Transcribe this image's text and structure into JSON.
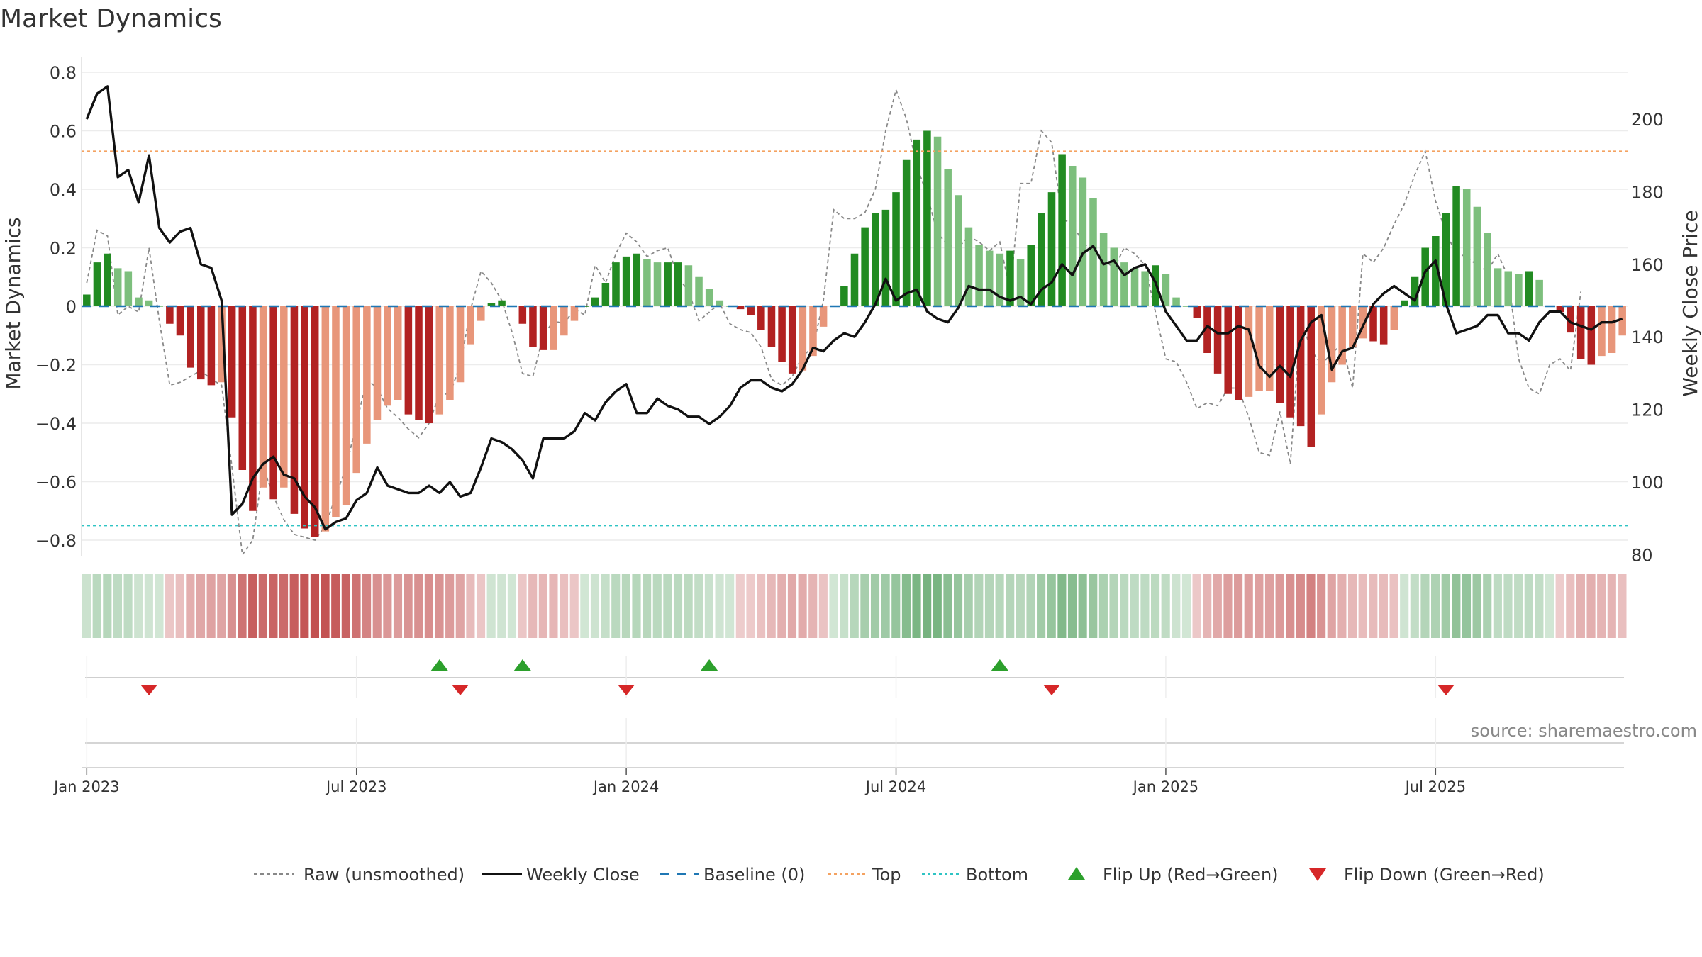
{
  "chart_data": {
    "type": "bar",
    "title": "Market Dynamics",
    "ylabel": "Market Dynamics",
    "y2label": "Weekly Close Price",
    "ylim": [
      -0.85,
      0.85
    ],
    "y2lim": [
      80,
      215
    ],
    "yticks": [
      "0.8",
      "0.6",
      "0.4",
      "0.2",
      "0",
      "−0.2",
      "−0.4",
      "−0.6",
      "−0.8"
    ],
    "y2ticks": [
      "200",
      "180",
      "160",
      "140",
      "120",
      "100",
      "80"
    ],
    "xticks": [
      "Jan 2023",
      "Jul 2023",
      "Jan 2024",
      "Jul 2024",
      "Jan 2025",
      "Jul 2025"
    ],
    "top_level": 0.53,
    "bottom_level": -0.75,
    "grid": true,
    "source": "source: sharemaestro.com",
    "legend": [
      {
        "label": "Raw (unsmoothed)",
        "style": "gray-dash"
      },
      {
        "label": "Weekly Close",
        "style": "black-line"
      },
      {
        "label": "Baseline (0)",
        "style": "blue-dash"
      },
      {
        "label": "Top",
        "style": "orange-dot"
      },
      {
        "label": "Bottom",
        "style": "cyan-dot"
      },
      {
        "label": "Flip Up (Red→Green)",
        "style": "green-up"
      },
      {
        "label": "Flip Down (Green→Red)",
        "style": "red-down"
      }
    ],
    "colors": {
      "green_strong": "#228b22",
      "green_light": "#7dbf7d",
      "red_strong": "#b22222",
      "red_light": "#e8967a",
      "baseline": "#1f77b4",
      "top": "#f4a261",
      "bottom": "#2ec4c4",
      "flip_up": "#2ca02c",
      "flip_down": "#d62728"
    },
    "series": [
      {
        "name": "Market Dynamics",
        "values": [
          0.04,
          0.15,
          0.18,
          0.13,
          0.12,
          0.03,
          0.02,
          0.0,
          -0.06,
          -0.1,
          -0.21,
          -0.25,
          -0.27,
          -0.26,
          -0.38,
          -0.56,
          -0.7,
          -0.62,
          -0.66,
          -0.62,
          -0.71,
          -0.76,
          -0.79,
          -0.77,
          -0.72,
          -0.68,
          -0.57,
          -0.47,
          -0.39,
          -0.34,
          -0.32,
          -0.37,
          -0.39,
          -0.4,
          -0.37,
          -0.32,
          -0.26,
          -0.13,
          -0.05,
          0.01,
          0.02,
          0.0,
          -0.06,
          -0.14,
          -0.15,
          -0.15,
          -0.1,
          -0.05,
          0.0,
          0.03,
          0.08,
          0.15,
          0.17,
          0.18,
          0.16,
          0.15,
          0.15,
          0.15,
          0.14,
          0.1,
          0.06,
          0.02,
          0.0,
          -0.01,
          -0.03,
          -0.08,
          -0.14,
          -0.19,
          -0.23,
          -0.22,
          -0.17,
          -0.07,
          0.0,
          0.07,
          0.18,
          0.27,
          0.32,
          0.33,
          0.39,
          0.5,
          0.57,
          0.6,
          0.58,
          0.47,
          0.38,
          0.27,
          0.21,
          0.19,
          0.18,
          0.19,
          0.16,
          0.21,
          0.32,
          0.39,
          0.52,
          0.48,
          0.44,
          0.37,
          0.25,
          0.2,
          0.15,
          0.13,
          0.12,
          0.14,
          0.11,
          0.03,
          0.0,
          -0.04,
          -0.16,
          -0.23,
          -0.3,
          -0.32,
          -0.31,
          -0.29,
          -0.29,
          -0.33,
          -0.38,
          -0.41,
          -0.48,
          -0.37,
          -0.26,
          -0.2,
          -0.14,
          -0.11,
          -0.12,
          -0.13,
          -0.08,
          0.02,
          0.1,
          0.2,
          0.24,
          0.32,
          0.41,
          0.4,
          0.34,
          0.25,
          0.13,
          0.12,
          0.11,
          0.12,
          0.09,
          0.0,
          -0.02,
          -0.09,
          -0.18,
          -0.2,
          -0.17,
          -0.16,
          -0.1
        ]
      },
      {
        "name": "Raw (unsmoothed)",
        "values": [
          0.08,
          0.26,
          0.24,
          -0.03,
          0.0,
          -0.02,
          0.2,
          -0.05,
          -0.27,
          -0.26,
          -0.24,
          -0.22,
          -0.25,
          -0.27,
          -0.55,
          -0.85,
          -0.8,
          -0.55,
          -0.65,
          -0.73,
          -0.78,
          -0.79,
          -0.8,
          -0.75,
          -0.65,
          -0.55,
          -0.4,
          -0.25,
          -0.28,
          -0.35,
          -0.38,
          -0.42,
          -0.45,
          -0.4,
          -0.3,
          -0.3,
          -0.2,
          -0.01,
          0.12,
          0.08,
          0.02,
          -0.09,
          -0.23,
          -0.24,
          -0.1,
          -0.05,
          -0.06,
          -0.01,
          -0.03,
          0.14,
          0.08,
          0.18,
          0.25,
          0.22,
          0.17,
          0.19,
          0.2,
          0.1,
          0.05,
          -0.05,
          -0.02,
          0.01,
          -0.06,
          -0.08,
          -0.09,
          -0.14,
          -0.25,
          -0.27,
          -0.24,
          -0.17,
          -0.14,
          0.02,
          0.33,
          0.3,
          0.3,
          0.32,
          0.4,
          0.6,
          0.74,
          0.64,
          0.48,
          0.38,
          0.25,
          0.21,
          0.2,
          0.24,
          0.22,
          0.19,
          0.22,
          0.05,
          0.42,
          0.42,
          0.6,
          0.56,
          0.3,
          0.28,
          0.22,
          0.18,
          0.16,
          0.13,
          0.2,
          0.18,
          0.14,
          -0.02,
          -0.18,
          -0.19,
          -0.26,
          -0.35,
          -0.33,
          -0.34,
          -0.28,
          -0.28,
          -0.38,
          -0.5,
          -0.51,
          -0.36,
          -0.54,
          -0.04,
          -0.15,
          -0.2,
          -0.16,
          -0.13,
          -0.28,
          0.18,
          0.15,
          0.2,
          0.28,
          0.35,
          0.45,
          0.53,
          0.36,
          0.25,
          0.18,
          0.17,
          0.14,
          0.12,
          0.18,
          0.1,
          -0.18,
          -0.28,
          -0.3,
          -0.2,
          -0.18,
          -0.22,
          0.05
        ]
      },
      {
        "name": "Weekly Close",
        "values": [
          200,
          207,
          209,
          184,
          186,
          177,
          190,
          170,
          166,
          169,
          170,
          160,
          159,
          150,
          91,
          94,
          101,
          105,
          107,
          102,
          101,
          96,
          93,
          87,
          89,
          90,
          95,
          97,
          104,
          99,
          98,
          97,
          97,
          99,
          97,
          100,
          96,
          97,
          104,
          112,
          111,
          109,
          106,
          101,
          112,
          112,
          112,
          114,
          119,
          117,
          122,
          125,
          127,
          119,
          119,
          123,
          121,
          120,
          118,
          118,
          116,
          118,
          121,
          126,
          128,
          128,
          126,
          125,
          127,
          131,
          137,
          136,
          139,
          141,
          140,
          144,
          149,
          156,
          150,
          152,
          153,
          147,
          145,
          144,
          148,
          154,
          153,
          153,
          151,
          150,
          151,
          149,
          153,
          155,
          160,
          157,
          163,
          165,
          160,
          161,
          157,
          159,
          160,
          155,
          147,
          143,
          139,
          139,
          143,
          141,
          141,
          143,
          142,
          132,
          129,
          132,
          129,
          139,
          144,
          146,
          131,
          136,
          137,
          143,
          149,
          152,
          154,
          152,
          150,
          158,
          161,
          149,
          141,
          142,
          143,
          146,
          146,
          141,
          141,
          139,
          144,
          147,
          147,
          144,
          143,
          142,
          144,
          144,
          145
        ]
      }
    ],
    "flips_up": [
      34,
      42,
      60,
      88
    ],
    "flips_down": [
      6,
      36,
      52,
      93,
      131
    ]
  }
}
